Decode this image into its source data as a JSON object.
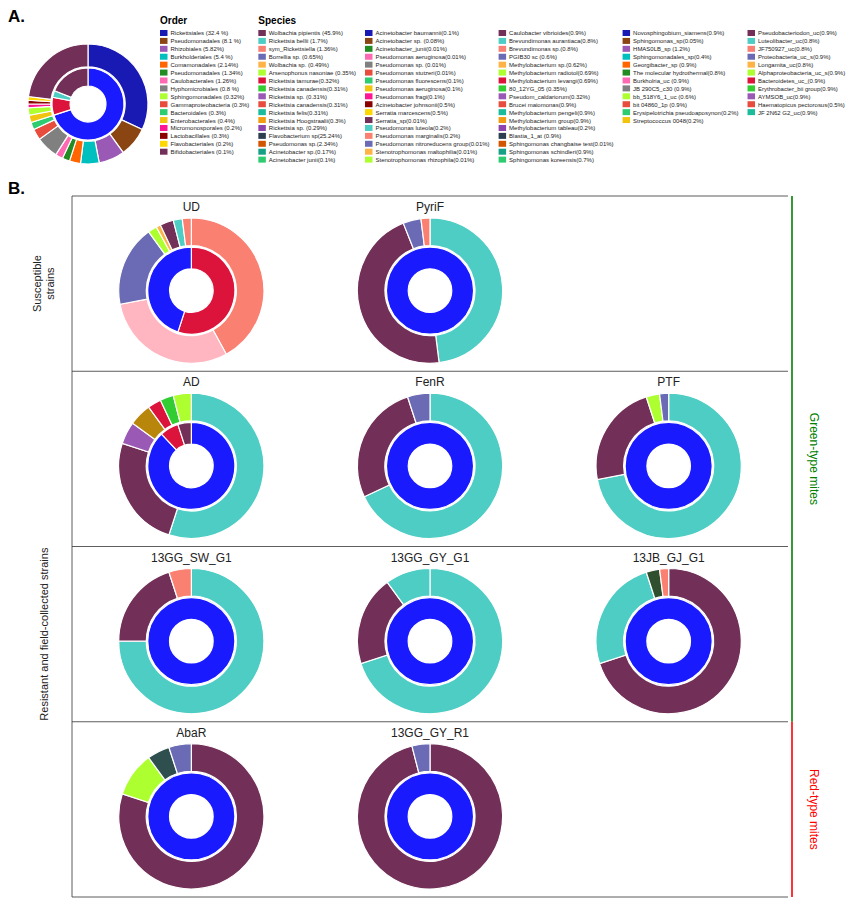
{
  "chart_data": [
    {
      "type": "donut",
      "annotations": [
        {
          "text": "A."
        }
      ],
      "series": [
        {
          "values": [
            32,
            8,
            7,
            5,
            3,
            2,
            2,
            6,
            3,
            2,
            2,
            2,
            1,
            1,
            1,
            23
          ],
          "colors": [
            "#1919B3",
            "#8B4513",
            "#9B59B6",
            "#00BFBF",
            "#FF6600",
            "#228B22",
            "#FF69B4",
            "#808080",
            "#E74C3C",
            "#2ECC71",
            "#F1C40F",
            "#ADFF2F",
            "#FF1493",
            "#8B0000",
            "#FFD700",
            "#722F57"
          ]
        },
        {
          "values": [
            70,
            8,
            3,
            19
          ],
          "colors": [
            "#1a1aff",
            "#DC143C",
            "#4ECDC4",
            "#722F57"
          ]
        }
      ]
    },
    {
      "type": "legend",
      "title": "Order",
      "categories": [
        "Rickettsiales (32.4 %)",
        "Pseudomonadales (8.1 %)",
        "Rhizobiales (5.82%)",
        "Burkholderiales (5.4 %)",
        "Comamonadales (2.14%)",
        "Pseudomonadales (1.34%)",
        "Caulobacterales (1.26%)",
        "Hyphomicrobiales (0.8 %)",
        "Sphingomonadales (0.32%)",
        "Gammaproteobacteria (0.3%)",
        "Bacteroidales (0.3%)",
        "Enterobacterales (0.4%)",
        "Micromonosporales (0.2%)",
        "Lactobacillales (0.3%)",
        "Flavobacteriales (0.2%)",
        "Bifidobacteriales (0.1%)"
      ],
      "colors": [
        "#1919B3",
        "#8B4513",
        "#9B59B6",
        "#00BFBF",
        "#FF6600",
        "#228B22",
        "#FF69B4",
        "#808080",
        "#ADFF2F",
        "#E74C3C",
        "#2ECC71",
        "#F1C40F",
        "#FF1493",
        "#8B0000",
        "#FFD700",
        "#722F57"
      ]
    },
    {
      "type": "legend",
      "title": "Species",
      "categories": [
        "Wolbachia pipientis (45.9%)",
        "Rickettsia bellii (1.7%)",
        "sym_Rickettsiella (1.36%)",
        "Borrellia sp. (0.65%)",
        "Wolbachia sp. (0.49%)",
        "Arsenophonus nasoniae (0.35%)",
        "Rickettsia tamurae(0.32%)",
        "Rickettsia canadensis(0.31%)",
        "Rickettsia sp. (0.31%)",
        "Rickettsia canadensis(0.31%)",
        "Rickettsia felis(0.31%)",
        "Rickettsia Hoogstraalii(0.3%)",
        "Rickettsia sp. (0.29%)",
        "Flavobacterium sp(25.24%)",
        "Pseudomonas sp.(2.34%)",
        "Acinetobacter sp.(0.17%)",
        "Acinetobacter junii(0.1%)"
      ],
      "colors": [
        "#722F57",
        "#4ECDC4",
        "#FA8072",
        "#6B6BB5",
        "#FFB347",
        "#ADFF2F",
        "#DC143C",
        "#32CD32",
        "#9B59B6",
        "#E74C3C",
        "#1ABC9C",
        "#F39C12",
        "#8E44AD",
        "#2C3E50",
        "#D35400",
        "#16A085",
        "#2ECC71"
      ]
    },
    {
      "type": "legend",
      "categories": [
        "Acinetobacter baumannii(0.1%)",
        "Acinetobacter sp. (0.08%)",
        "Acinetobacter_junii(0.01%)",
        "Pseudomonas aeruginosa(0.01%)",
        "Pseudomonas sp. (0.01%)",
        "Pseudomonas stutzeri(0.01%)",
        "Pseudomonas fluorescens(0.1%)",
        "Pseudomonas aeruginosa(0.1%)",
        "Pseudomonas fragi(0.1%)",
        "Acinetobacter johnsonii(0.5%)",
        "Serratia marcescens(0.5%)",
        "Serratia_sp(0.01%)",
        "Pseudomonas luteola(0.2%)",
        "Pseudomonas marginalis(0.2%)",
        "Pseudomonas nitroreducens group(0.01%)",
        "Stenotrophomonas maltophilia(0.01%)",
        "Stenotrophomonas rhizophila(0.01%)"
      ],
      "colors": [
        "#1919B3",
        "#8B4513",
        "#228B22",
        "#FF69B4",
        "#808080",
        "#E74C3C",
        "#2ECC71",
        "#F1C40F",
        "#FF1493",
        "#8B0000",
        "#FFD700",
        "#722F57",
        "#4ECDC4",
        "#FA8072",
        "#6B6BB5",
        "#FFB347",
        "#ADFF2F"
      ]
    },
    {
      "type": "legend",
      "categories": [
        "Caulobacter vibrioides(0.9%)",
        "Brevundimonas aurantiaca(0.8%)",
        "Brevundimonas sp.(0.8%)",
        "PGIB30 sc (0.6%)",
        "Methylobacterium sp.(0.62%)",
        "Methylobacterium radiotol(0.69%)",
        "Methylobacterium levangi(0.69%)",
        "80_12YG_05 (0.35%)",
        "Pseudom_caldariorum(0.32%)",
        "Brucei maiomonas(0.9%)",
        "Methylobacterium pengeli(0.9%)",
        "Methylobacterium group(0.9%)",
        "Methylobacterium tableau(0.2%)",
        "Blastia_1_at (0.9%)",
        "Sphingomonas changbaise test(0.01%)",
        "Sphingomonas schindleri(0.9%)",
        "Sphingomonas koreensis(0.7%)"
      ],
      "colors": [
        "#722F57",
        "#4ECDC4",
        "#FA8072",
        "#6B6BB5",
        "#FFB347",
        "#ADFF2F",
        "#DC143C",
        "#32CD32",
        "#9B59B6",
        "#E74C3C",
        "#1ABC9C",
        "#F39C12",
        "#8E44AD",
        "#2C3E50",
        "#D35400",
        "#16A085",
        "#2ECC71"
      ]
    },
    {
      "type": "legend",
      "categories": [
        "Novosphingobium_siamens(0.9%)",
        "Sphingomonas_sp(0.05%)",
        "HMAS0LB_sp (1.2%)",
        "Sphingomonadales_sp(0.4%)",
        "Georgibacter_sp (0.9%)",
        "The molecular hydrothermal(0.8%)",
        "Burkholria_uc (0.9%)",
        "JB 290C5_c30 (0.9%)",
        "bb_518Y6_1_uc (0.6%)",
        "bit 04860_1p (0.9%)",
        "Erysipelotrichia pseudoaposynon(0.2%)",
        "Streptococcus 0048(0.2%)"
      ],
      "colors": [
        "#1919B3",
        "#8B4513",
        "#9B59B6",
        "#00BFBF",
        "#FF6600",
        "#228B22",
        "#FF69B4",
        "#808080",
        "#ADFF2F",
        "#E74C3C",
        "#2ECC71",
        "#F1C40F"
      ]
    },
    {
      "type": "legend",
      "categories": [
        "Pseudobacteriodon_uc(0.9%)",
        "Luteolibacter_uc(0.8%)",
        "JF750927_uc(0.8%)",
        "Proteobacteria_uc_s(0.9%)",
        "Longamita_uc(0.8%)",
        "Alphaproteobacteria_uc_s(0.9%)",
        "Bacteroidetes_uc_(0.9%)",
        "Erythrobacter_bii group(0.9%)",
        "AYMSOB_uc(0.9%)",
        "Haematopicus pectorosus(0.5%)",
        "JF 2N62 G2_uc(0.9%)"
      ],
      "colors": [
        "#722F57",
        "#4ECDC4",
        "#FA8072",
        "#6B6BB5",
        "#FFB347",
        "#ADFF2F",
        "#DC143C",
        "#32CD32",
        "#9B59B6",
        "#E74C3C",
        "#1ABC9C"
      ]
    },
    {
      "type": "donut",
      "title": "UD",
      "annotations": [
        {
          "text": "B."
        },
        {
          "text": "Susceptible\nstrains"
        },
        {
          "text": "Resistant and field-collected strains"
        },
        {
          "text": "Green-type mites",
          "color": "green"
        },
        {
          "text": "Red-type mites",
          "color": "red"
        }
      ],
      "series": [
        {
          "values": [
            42,
            30,
            18,
            2,
            1,
            3,
            2,
            2
          ],
          "colors": [
            "#FA8072",
            "#FFB6C1",
            "#6B6BB5",
            "#ADFF2F",
            "#FFB347",
            "#722F57",
            "#4ECDC4",
            "#FA8072"
          ]
        },
        {
          "values": [
            55,
            45
          ],
          "colors": [
            "#DC143C",
            "#1a1aff"
          ]
        }
      ]
    },
    {
      "type": "donut",
      "title": "PyriF",
      "series": [
        {
          "values": [
            48,
            46,
            4,
            2
          ],
          "colors": [
            "#4ECDC4",
            "#722F57",
            "#6B6BB5",
            "#FA8072"
          ]
        },
        {
          "values": [
            100
          ],
          "colors": [
            "#1a1aff"
          ]
        }
      ]
    },
    {
      "type": "donut",
      "title": "AD",
      "series": [
        {
          "values": [
            55,
            25,
            5,
            5,
            3,
            3,
            4
          ],
          "colors": [
            "#4ECDC4",
            "#722F57",
            "#9B59B6",
            "#B8860B",
            "#DC143C",
            "#32CD32",
            "#ADFF2F"
          ]
        },
        {
          "values": [
            88,
            7,
            5
          ],
          "colors": [
            "#1a1aff",
            "#DC143C",
            "#722F57"
          ]
        }
      ]
    },
    {
      "type": "donut",
      "title": "FenR",
      "series": [
        {
          "values": [
            68,
            27,
            5
          ],
          "colors": [
            "#4ECDC4",
            "#722F57",
            "#6B6BB5"
          ]
        },
        {
          "values": [
            100
          ],
          "colors": [
            "#1a1aff"
          ]
        }
      ]
    },
    {
      "type": "donut",
      "title": "PTF",
      "series": [
        {
          "values": [
            72,
            23,
            3,
            2
          ],
          "colors": [
            "#4ECDC4",
            "#722F57",
            "#ADFF2F",
            "#6B6BB5"
          ]
        },
        {
          "values": [
            100
          ],
          "colors": [
            "#1a1aff"
          ]
        }
      ]
    },
    {
      "type": "donut",
      "title": "13GG_SW_G1",
      "series": [
        {
          "values": [
            75,
            20,
            5
          ],
          "colors": [
            "#4ECDC4",
            "#722F57",
            "#FA8072"
          ]
        },
        {
          "values": [
            100
          ],
          "colors": [
            "#1a1aff"
          ]
        }
      ]
    },
    {
      "type": "donut",
      "title": "13GG_GY_G1",
      "series": [
        {
          "values": [
            70,
            20,
            10
          ],
          "colors": [
            "#4ECDC4",
            "#722F57",
            "#4ECDC4"
          ]
        },
        {
          "values": [
            100
          ],
          "colors": [
            "#1a1aff"
          ]
        }
      ]
    },
    {
      "type": "donut",
      "title": "13JB_GJ_G1",
      "series": [
        {
          "values": [
            70,
            25,
            3,
            2
          ],
          "colors": [
            "#722F57",
            "#4ECDC4",
            "#2F4F2F",
            "#FA8072"
          ]
        },
        {
          "values": [
            100
          ],
          "colors": [
            "#1a1aff"
          ]
        }
      ]
    },
    {
      "type": "donut",
      "title": "AbaR",
      "series": [
        {
          "values": [
            80,
            10,
            5,
            5
          ],
          "colors": [
            "#722F57",
            "#ADFF2F",
            "#2F4F4F",
            "#6B6BB5"
          ]
        },
        {
          "values": [
            100
          ],
          "colors": [
            "#1a1aff"
          ]
        }
      ]
    },
    {
      "type": "donut",
      "title": "13GG_GY_R1",
      "series": [
        {
          "values": [
            96,
            4
          ],
          "colors": [
            "#722F57",
            "#6B6BB5"
          ]
        },
        {
          "values": [
            100
          ],
          "colors": [
            "#1a1aff"
          ]
        }
      ]
    }
  ]
}
